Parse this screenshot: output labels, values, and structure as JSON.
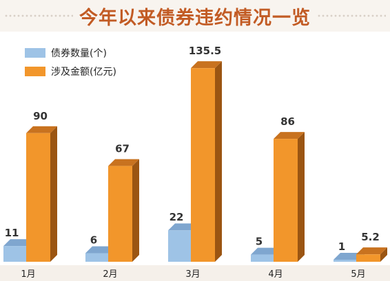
{
  "title": "今年以来债券违约情况一览",
  "chart_data": {
    "type": "bar",
    "categories": [
      "1月",
      "2月",
      "3月",
      "4月",
      "5月"
    ],
    "series": [
      {
        "name": "债券数量(个)",
        "values": [
          11,
          6,
          22,
          5,
          1
        ],
        "labels": [
          "11",
          "6",
          "22",
          "5",
          "1"
        ],
        "color": "#9ec3e6",
        "dark_color": "#6f95bd"
      },
      {
        "name": "涉及金额(亿元)",
        "values": [
          90,
          67,
          135.5,
          86,
          5.2
        ],
        "labels": [
          "90",
          "67",
          "135.5",
          "86",
          "5.2"
        ],
        "color": "#f2962b",
        "dark_color": "#9b5512"
      }
    ],
    "ylim": [
      0,
      140
    ],
    "grid": false,
    "legend": "top-left",
    "style": "3d-bar"
  },
  "colors": {
    "title": "#c25b24",
    "background": "#f5f0ea",
    "panel": "#ffffff"
  }
}
